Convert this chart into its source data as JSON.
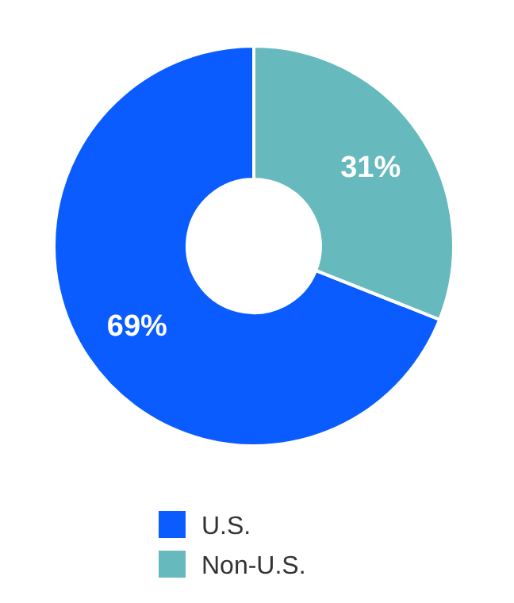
{
  "chart_data": {
    "type": "donut",
    "categories": [
      "U.S.",
      "Non-U.S."
    ],
    "values": [
      69,
      31
    ],
    "colors": [
      "#0a5cff",
      "#66b9bc"
    ],
    "value_labels": [
      "69%",
      "31%"
    ],
    "legend": "bottom"
  }
}
